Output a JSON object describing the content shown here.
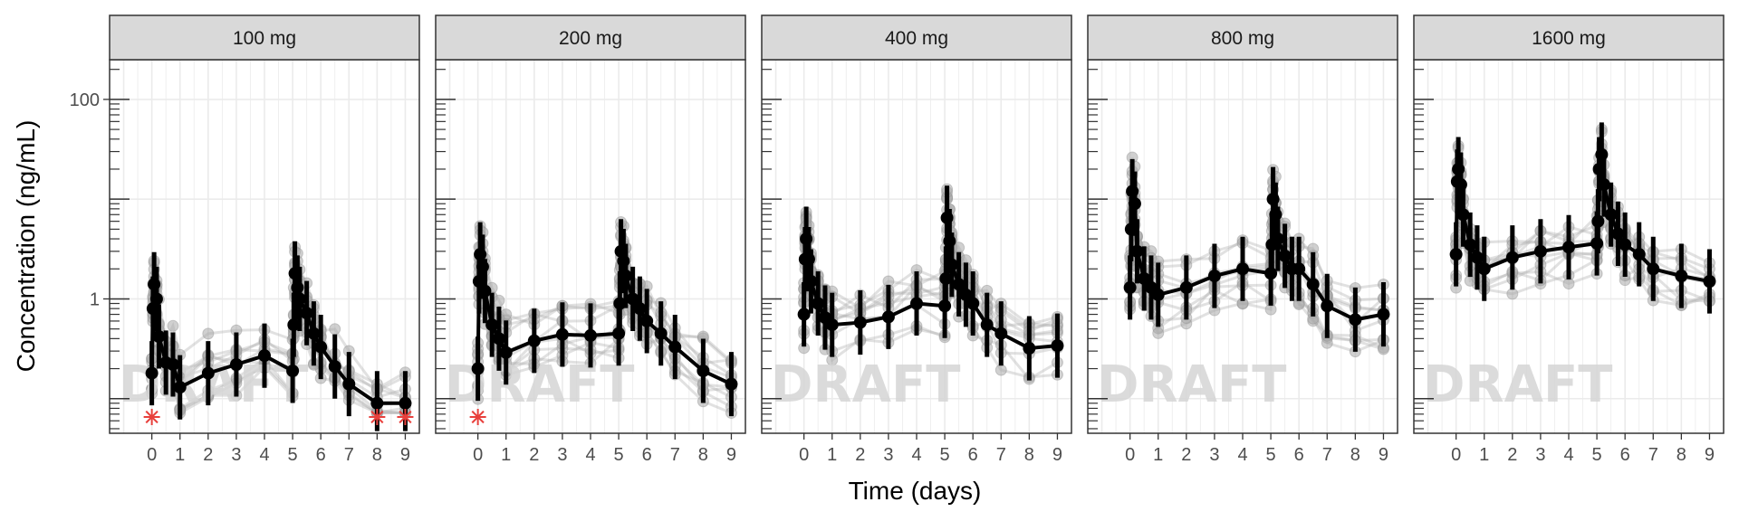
{
  "chart_data": {
    "type": "line",
    "subtype": "faceted semi-log pharmacokinetic profile with individual subjects and mean ± SD",
    "xlabel": "Time (days)",
    "ylabel": "Concentration (ng/mL)",
    "y_scale": "log10",
    "ylim": [
      0.045,
      250
    ],
    "xlim": [
      -1.5,
      9.5
    ],
    "x_ticks": [
      0,
      1,
      2,
      3,
      4,
      5,
      6,
      7,
      8,
      9
    ],
    "y_tick_labels": [
      {
        "value": 1,
        "label": "1"
      },
      {
        "value": 100,
        "label": "100"
      }
    ],
    "grid": true,
    "watermark": "DRAFT",
    "colors": {
      "mean": "#000000",
      "individual": "#a9a9a9",
      "blq_marker": "#e8403c",
      "strip_fill": "#d9d9d9",
      "grid": "#ebebeb"
    },
    "facets": [
      {
        "label": "100 mg",
        "mean_x": [
          0,
          0.04,
          0.08,
          0.17,
          0.25,
          0.5,
          0.75,
          1,
          2,
          3,
          4,
          5,
          5.04,
          5.08,
          5.17,
          5.25,
          5.5,
          5.75,
          6,
          6.5,
          7,
          8,
          9
        ],
        "mean_y": [
          0.18,
          0.8,
          1.4,
          1.0,
          0.42,
          0.23,
          0.22,
          0.13,
          0.18,
          0.22,
          0.27,
          0.19,
          0.55,
          1.8,
          1.3,
          1.0,
          0.72,
          0.45,
          0.33,
          0.21,
          0.14,
          0.09,
          0.09
        ],
        "blq_x": [
          0,
          8,
          9
        ]
      },
      {
        "label": "200 mg",
        "mean_x": [
          0,
          0.04,
          0.08,
          0.17,
          0.25,
          0.5,
          0.75,
          1,
          2,
          3,
          4,
          5,
          5.04,
          5.08,
          5.17,
          5.25,
          5.5,
          5.75,
          6,
          6.5,
          7,
          8,
          9
        ],
        "mean_y": [
          0.2,
          1.5,
          2.8,
          2.1,
          1.2,
          0.55,
          0.4,
          0.29,
          0.38,
          0.44,
          0.43,
          0.45,
          0.9,
          3.0,
          2.4,
          1.7,
          1.0,
          0.8,
          0.6,
          0.45,
          0.33,
          0.19,
          0.14
        ],
        "blq_x": [
          0
        ]
      },
      {
        "label": "400 mg",
        "mean_x": [
          0,
          0.04,
          0.08,
          0.17,
          0.25,
          0.5,
          0.75,
          1,
          2,
          3,
          4,
          5,
          5.04,
          5.08,
          5.17,
          5.25,
          5.5,
          5.75,
          6,
          6.5,
          7,
          8,
          9
        ],
        "mean_y": [
          0.7,
          2.5,
          4.0,
          2.5,
          1.5,
          0.9,
          0.65,
          0.55,
          0.58,
          0.66,
          0.9,
          0.85,
          1.6,
          6.5,
          3.8,
          2.2,
          1.4,
          1.1,
          0.9,
          0.55,
          0.45,
          0.32,
          0.34
        ],
        "blq_x": []
      },
      {
        "label": "800 mg",
        "mean_x": [
          0,
          0.04,
          0.08,
          0.17,
          0.25,
          0.5,
          0.75,
          1,
          2,
          3,
          4,
          5,
          5.04,
          5.08,
          5.17,
          5.25,
          5.5,
          5.75,
          6,
          6.5,
          7,
          8,
          9
        ],
        "mean_y": [
          1.3,
          5.0,
          12.0,
          9.0,
          3.0,
          1.6,
          1.3,
          1.1,
          1.3,
          1.7,
          2.0,
          1.8,
          3.5,
          10.0,
          7.0,
          4.0,
          2.7,
          2.0,
          2.0,
          1.4,
          0.85,
          0.62,
          0.7
        ],
        "blq_x": []
      },
      {
        "label": "1600 mg",
        "mean_x": [
          0,
          0.04,
          0.08,
          0.17,
          0.25,
          0.5,
          0.75,
          1,
          2,
          3,
          4,
          5,
          5.04,
          5.08,
          5.17,
          5.25,
          5.5,
          5.75,
          6,
          6.5,
          7,
          8,
          9
        ],
        "mean_y": [
          2.8,
          15.0,
          20.0,
          14.0,
          7.0,
          3.5,
          2.6,
          2.0,
          2.6,
          3.0,
          3.3,
          3.6,
          6.0,
          20.0,
          28.0,
          14.0,
          7.0,
          4.5,
          3.5,
          2.8,
          2.0,
          1.7,
          1.5
        ],
        "blq_x": []
      }
    ]
  }
}
